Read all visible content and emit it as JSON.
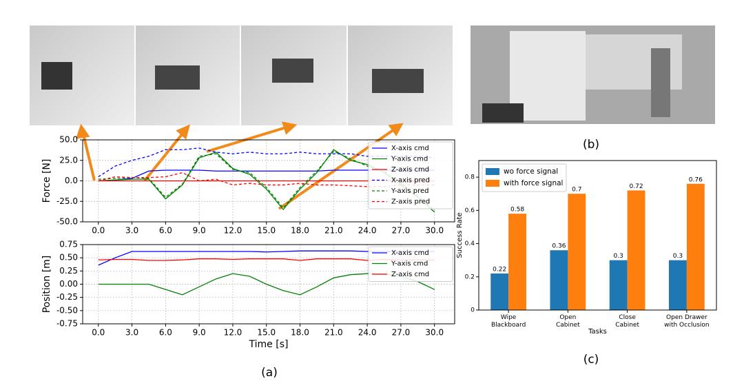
{
  "captions": [
    "(a)",
    "(b)",
    "(c)"
  ],
  "chart_data": [
    {
      "type": "line",
      "ylabel": "Force [N]",
      "x": [
        0,
        1.5,
        3,
        4.5,
        6,
        7.5,
        9,
        10.5,
        12,
        13.5,
        15,
        16.5,
        18,
        19.5,
        21,
        22.5,
        24,
        25.5,
        27,
        28.5,
        30
      ],
      "xlim": [
        -1.4,
        31.8
      ],
      "xticks": [
        {
          "value": 0,
          "label": "0.0"
        },
        {
          "value": 3,
          "label": "3.0"
        },
        {
          "value": 6,
          "label": "6.0"
        },
        {
          "value": 9,
          "label": "9.0"
        },
        {
          "value": 12,
          "label": "12.0"
        },
        {
          "value": 15,
          "label": "15.0"
        },
        {
          "value": 18,
          "label": "18.0"
        },
        {
          "value": 21,
          "label": "21.0"
        },
        {
          "value": 24,
          "label": "24.0"
        },
        {
          "value": 27,
          "label": "27.0"
        },
        {
          "value": 30,
          "label": "30.0"
        }
      ],
      "ylim": [
        -50,
        50
      ],
      "yticks": [
        {
          "value": -50,
          "label": "-50.0"
        },
        {
          "value": -25,
          "label": "-25.0"
        },
        {
          "value": 0,
          "label": "0.0"
        },
        {
          "value": 25,
          "label": "25.0"
        },
        {
          "value": 50,
          "label": "50.0"
        }
      ],
      "grid": true,
      "legend": "upper right",
      "series": [
        {
          "name": "X-axis cmd",
          "color": "#0000ff",
          "linestyle": "solid",
          "values": [
            0,
            1,
            3,
            12,
            13,
            13,
            13,
            12,
            12,
            12,
            12,
            12,
            12,
            12,
            13,
            13,
            13,
            13,
            13,
            13,
            13
          ]
        },
        {
          "name": "Y-axis cmd",
          "color": "#008000",
          "linestyle": "solid",
          "values": [
            0,
            1,
            2,
            2,
            -22,
            -5,
            28,
            35,
            15,
            8,
            -10,
            -35,
            -10,
            10,
            38,
            25,
            20,
            10,
            -5,
            -20,
            -38
          ]
        },
        {
          "name": "Z-axis cmd",
          "color": "#ff0000",
          "linestyle": "solid",
          "values": [
            0,
            0,
            0,
            0,
            0,
            0,
            0,
            0,
            0,
            0,
            0,
            0,
            0,
            0,
            0,
            0,
            0,
            0,
            0,
            0,
            0
          ]
        },
        {
          "name": "X-axis pred",
          "color": "#0000ff",
          "linestyle": "dashed",
          "values": [
            5,
            18,
            25,
            30,
            38,
            38,
            40,
            35,
            33,
            35,
            33,
            33,
            35,
            33,
            33,
            33,
            30,
            30,
            30,
            30,
            28
          ]
        },
        {
          "name": "Y-axis pred",
          "color": "#008000",
          "linestyle": "dashed",
          "values": [
            2,
            3,
            4,
            3,
            -20,
            -4,
            30,
            33,
            14,
            10,
            -8,
            -33,
            -8,
            12,
            36,
            27,
            18,
            12,
            -3,
            -18,
            -36
          ]
        },
        {
          "name": "Z-axis pred",
          "color": "#ff0000",
          "linestyle": "dashed",
          "values": [
            0,
            5,
            4,
            4,
            5,
            10,
            0,
            2,
            -5,
            -3,
            -5,
            -5,
            -3,
            -5,
            -5,
            -6,
            -7,
            -7,
            -5,
            -5,
            -5
          ]
        }
      ]
    },
    {
      "type": "line",
      "ylabel": "Position [m]",
      "xlabel": "Time [s]",
      "x": [
        0,
        1.5,
        3,
        4.5,
        6,
        7.5,
        9,
        10.5,
        12,
        13.5,
        15,
        16.5,
        18,
        19.5,
        21,
        22.5,
        24,
        25.5,
        27,
        28.5,
        30
      ],
      "xlim": [
        -1.4,
        31.8
      ],
      "xticks": [
        {
          "value": 0,
          "label": "0.0"
        },
        {
          "value": 3,
          "label": "3.0"
        },
        {
          "value": 6,
          "label": "6.0"
        },
        {
          "value": 9,
          "label": "9.0"
        },
        {
          "value": 12,
          "label": "12.0"
        },
        {
          "value": 15,
          "label": "15.0"
        },
        {
          "value": 18,
          "label": "18.0"
        },
        {
          "value": 21,
          "label": "21.0"
        },
        {
          "value": 24,
          "label": "24.0"
        },
        {
          "value": 27,
          "label": "27.0"
        },
        {
          "value": 30,
          "label": "30.0"
        }
      ],
      "ylim": [
        -0.75,
        0.75
      ],
      "yticks": [
        -0.75,
        {
          "value": -0.5,
          "label": "-0.50"
        },
        -0.25,
        {
          "value": 0,
          "label": "0.00"
        },
        0.25,
        {
          "value": 0.5,
          "label": "0.50"
        },
        0.75
      ],
      "grid": true,
      "legend": "upper right",
      "series": [
        {
          "name": "X-axis cmd",
          "color": "#0000ff",
          "linestyle": "solid",
          "values": [
            0.36,
            0.5,
            0.62,
            0.62,
            0.62,
            0.62,
            0.62,
            0.62,
            0.62,
            0.62,
            0.61,
            0.62,
            0.63,
            0.63,
            0.63,
            0.63,
            0.62,
            0.62,
            0.62,
            0.62,
            0.62
          ]
        },
        {
          "name": "Y-axis cmd",
          "color": "#008000",
          "linestyle": "solid",
          "values": [
            0,
            0,
            0,
            0,
            -0.1,
            -0.2,
            -0.05,
            0.1,
            0.2,
            0.15,
            0,
            -0.12,
            -0.2,
            -0.05,
            0.12,
            0.18,
            0.2,
            0.2,
            0.15,
            0.05,
            -0.1
          ]
        },
        {
          "name": "Z-axis cmd",
          "color": "#ff0000",
          "linestyle": "solid",
          "values": [
            0.46,
            0.47,
            0.47,
            0.45,
            0.45,
            0.46,
            0.48,
            0.48,
            0.47,
            0.48,
            0.48,
            0.48,
            0.45,
            0.48,
            0.48,
            0.48,
            0.45,
            0.47,
            0.46,
            0.46,
            0.46
          ]
        }
      ]
    },
    {
      "type": "bar",
      "ylabel": "Success Rate",
      "xlabel": "Tasks",
      "categories": [
        "Wipe\nBlackboard",
        "Open\nCabinet",
        "Close\nCabinet",
        "Open Drawer\nwith Occlusion"
      ],
      "ylim": [
        0,
        0.9
      ],
      "yticks": [
        0,
        0.2,
        0.4,
        0.6,
        0.8
      ],
      "legend": "upper left",
      "series": [
        {
          "name": "wo force signal",
          "color": "#1f77b4",
          "values": [
            0.22,
            0.36,
            0.3,
            0.3
          ]
        },
        {
          "name": "with force signal",
          "color": "#ff7f0e",
          "values": [
            0.58,
            0.7,
            0.72,
            0.76
          ]
        }
      ]
    }
  ]
}
